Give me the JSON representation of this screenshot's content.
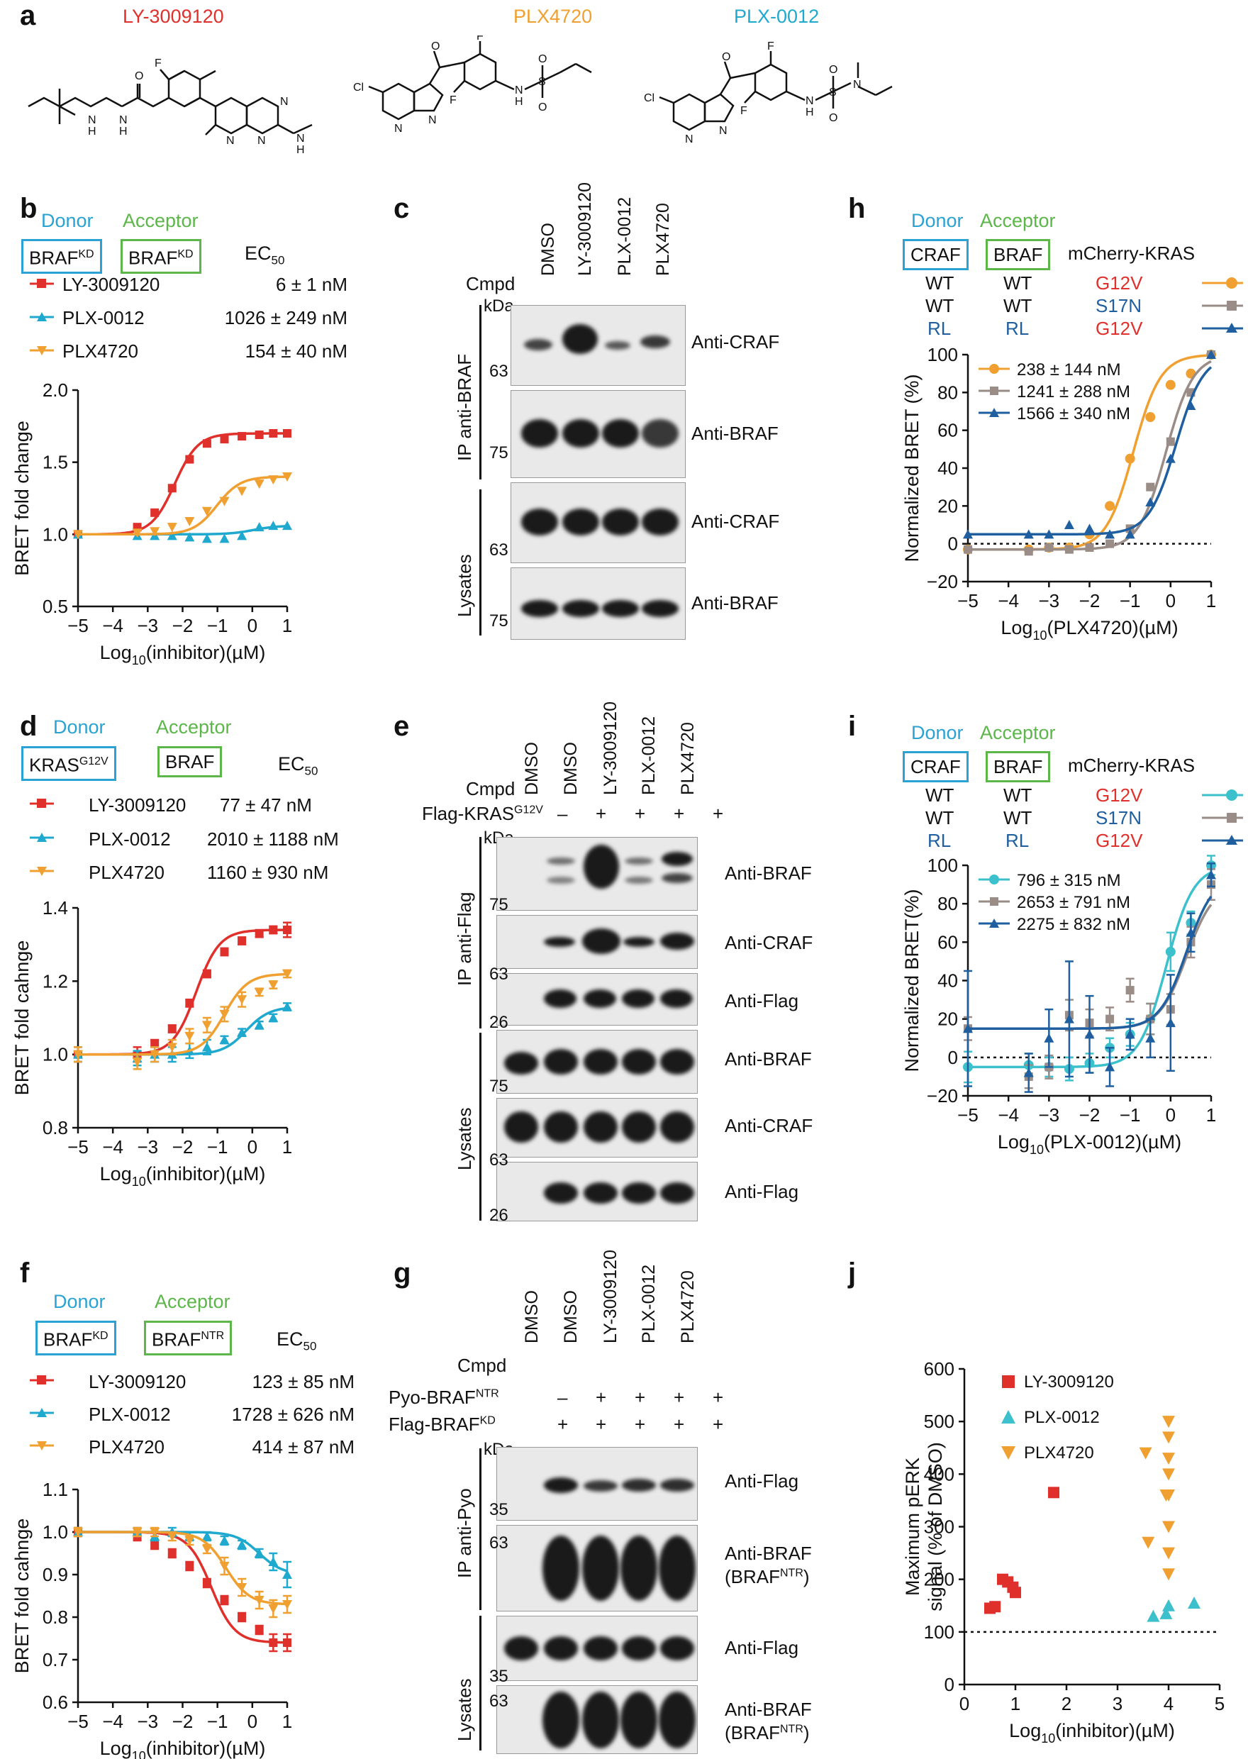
{
  "panels": {
    "a": "a",
    "b": "b",
    "c": "c",
    "d": "d",
    "e": "e",
    "f": "f",
    "g": "g",
    "h": "h",
    "i": "i",
    "j": "j"
  },
  "panel_a": {
    "compounds": [
      {
        "name": "LY-3009120",
        "color": "#e0302c"
      },
      {
        "name": "PLX4720",
        "color": "#f0a030"
      },
      {
        "name": "PLX-0012",
        "color": "#20a9cf"
      }
    ],
    "atoms": {
      "F": "F",
      "H": "H",
      "N": "N",
      "O": "O",
      "S": "S",
      "Cl": "Cl"
    }
  },
  "legend_common": {
    "donor": "Donor",
    "acceptor": "Acceptor",
    "ec50": "EC",
    "ec50_sub": "50"
  },
  "panel_b": {
    "donor_box": "BRAF",
    "donor_sup": "KD",
    "acceptor_box": "BRAF",
    "acceptor_sup": "KD",
    "legend": [
      {
        "name": "LY-3009120",
        "ec50": "6 ± 1 nM"
      },
      {
        "name": "PLX-0012",
        "ec50": "1026 ± 249 nM"
      },
      {
        "name": "PLX4720",
        "ec50": "154 ± 40 nM"
      }
    ]
  },
  "panel_d": {
    "donor_box": "KRAS",
    "donor_sup": "G12V",
    "acceptor_box": "BRAF",
    "legend": [
      {
        "name": "LY-3009120",
        "ec50": "77 ± 47 nM"
      },
      {
        "name": "PLX-0012",
        "ec50": "2010 ± 1188 nM"
      },
      {
        "name": "PLX4720",
        "ec50": "1160 ± 930 nM"
      }
    ]
  },
  "panel_f": {
    "donor_box": "BRAF",
    "donor_sup": "KD",
    "acceptor_box": "BRAF",
    "acceptor_sup": "NTR",
    "legend": [
      {
        "name": "LY-3009120",
        "ec50": "123 ± 85 nM"
      },
      {
        "name": "PLX-0012",
        "ec50": "1728 ± 626 nM"
      },
      {
        "name": "PLX4720",
        "ec50": "414 ± 87 nM"
      }
    ]
  },
  "panel_h": {
    "donor_box": "CRAF",
    "acceptor_box": "BRAF",
    "kras": "mCherry-KRAS",
    "rows": [
      [
        "WT",
        "WT",
        "G12V"
      ],
      [
        "WT",
        "WT",
        "S17N"
      ],
      [
        "RL",
        "RL",
        "G12V"
      ]
    ],
    "ec50": [
      "238 ± 144 nM",
      "1241 ± 288 nM",
      "1566 ± 340 nM"
    ]
  },
  "panel_i": {
    "donor_box": "CRAF",
    "acceptor_box": "BRAF",
    "kras": "mCherry-KRAS",
    "rows": [
      [
        "WT",
        "WT",
        "G12V"
      ],
      [
        "WT",
        "WT",
        "S17N"
      ],
      [
        "RL",
        "RL",
        "G12V"
      ]
    ],
    "ec50": [
      "796 ± 315 nM",
      "2653 ± 791 nM",
      "2275 ± 832 nM"
    ]
  },
  "panel_c": {
    "cmpd": "Cmpd",
    "kda": "kDa",
    "lanes": [
      "DMSO",
      "LY-3009120",
      "PLX-0012",
      "PLX4720"
    ],
    "groups": [
      "IP anti-BRAF",
      "Lysates"
    ],
    "blots": [
      "Anti-CRAF",
      "Anti-BRAF",
      "Anti-CRAF",
      "Anti-BRAF"
    ],
    "markers": [
      "63",
      "75",
      "63",
      "75"
    ]
  },
  "panel_e": {
    "cmpd": "Cmpd",
    "kda": "kDa",
    "flag_label": "Flag-KRAS",
    "flag_sup": "G12V",
    "lanes": [
      "DMSO",
      "DMSO",
      "LY-3009120",
      "PLX-0012",
      "PLX4720"
    ],
    "flag_signs": [
      "–",
      "+",
      "+",
      "+",
      "+"
    ],
    "groups": [
      "IP anti-Flag",
      "Lysates"
    ],
    "blots": [
      "Anti-BRAF",
      "Anti-CRAF",
      "Anti-Flag",
      "Anti-BRAF",
      "Anti-CRAF",
      "Anti-Flag"
    ],
    "markers": [
      "75",
      "63",
      "26",
      "75",
      "63",
      "26"
    ]
  },
  "panel_g": {
    "cmpd": "Cmpd",
    "kda": "kDa",
    "pyo_label": "Pyo-BRAF",
    "pyo_sup": "NTR",
    "flag_label": "Flag-BRAF",
    "flag_sup": "KD",
    "lanes": [
      "DMSO",
      "DMSO",
      "LY-3009120",
      "PLX-0012",
      "PLX4720"
    ],
    "pyo_signs": [
      "–",
      "+",
      "+",
      "+",
      "+"
    ],
    "flag_signs": [
      "+",
      "+",
      "+",
      "+",
      "+"
    ],
    "groups": [
      "IP anti-Pyo",
      "Lysates"
    ],
    "blots": [
      "Anti-Flag",
      "Anti-BRAF",
      "Anti-Flag",
      "Anti-BRAF"
    ],
    "blot_sub": "(BRAF",
    "blot_sub_sup": "NTR",
    "blot_sub_end": ")",
    "markers": [
      "35",
      "63",
      "35",
      "63"
    ]
  },
  "chart_data": [
    {
      "id": "b",
      "type": "line",
      "ylabel": "BRET fold change",
      "xlabel": "Log10(inhibitor)(µM)",
      "xlim": [
        -5,
        1
      ],
      "ylim": [
        0.5,
        2.0
      ],
      "xticks": [
        -5,
        -4,
        -3,
        -2,
        -1,
        0,
        1
      ],
      "yticks": [
        0.5,
        1.0,
        1.5,
        2.0
      ],
      "series": [
        {
          "name": "LY-3009120",
          "color": "#e0302c",
          "marker": "square",
          "x": [
            -5,
            -3.3,
            -2.8,
            -2.3,
            -1.8,
            -1.3,
            -0.8,
            -0.3,
            0.2,
            0.6,
            1
          ],
          "y": [
            1.0,
            1.05,
            1.15,
            1.32,
            1.52,
            1.63,
            1.66,
            1.68,
            1.69,
            1.7,
            1.7
          ]
        },
        {
          "name": "PLX-0012",
          "color": "#20a9cf",
          "marker": "triangle",
          "x": [
            -5,
            -3.3,
            -2.8,
            -2.3,
            -1.8,
            -1.3,
            -0.8,
            -0.3,
            0.2,
            0.6,
            1
          ],
          "y": [
            1.0,
            0.99,
            0.99,
            0.99,
            0.98,
            0.97,
            0.97,
            0.99,
            1.05,
            1.06,
            1.06
          ]
        },
        {
          "name": "PLX4720",
          "color": "#f0a030",
          "marker": "triangle-down",
          "x": [
            -5,
            -3.3,
            -2.8,
            -2.3,
            -1.8,
            -1.3,
            -0.8,
            -0.3,
            0.2,
            0.6,
            1
          ],
          "y": [
            1.0,
            1.01,
            1.02,
            1.05,
            1.09,
            1.16,
            1.23,
            1.3,
            1.35,
            1.38,
            1.4
          ]
        }
      ]
    },
    {
      "id": "d",
      "type": "line",
      "ylabel": "BRET fold cahnge",
      "xlabel": "Log10(inhibitor)(µM)",
      "xlim": [
        -5,
        1
      ],
      "ylim": [
        0.8,
        1.4
      ],
      "xticks": [
        -5,
        -4,
        -3,
        -2,
        -1,
        0,
        1
      ],
      "yticks": [
        0.8,
        1.0,
        1.2,
        1.4
      ],
      "series": [
        {
          "name": "LY-3009120",
          "color": "#e0302c",
          "marker": "square",
          "x": [
            -5,
            -3.3,
            -2.8,
            -2.3,
            -1.8,
            -1.3,
            -0.8,
            -0.3,
            0.2,
            0.6,
            1
          ],
          "y": [
            1.0,
            1.0,
            1.03,
            1.07,
            1.14,
            1.22,
            1.28,
            1.31,
            1.33,
            1.34,
            1.34
          ],
          "err": [
            0.02,
            0.02,
            0.01,
            0.01,
            0.01,
            0.01,
            0.01,
            0.01,
            0.01,
            0.01,
            0.02
          ]
        },
        {
          "name": "PLX-0012",
          "color": "#20a9cf",
          "marker": "triangle",
          "x": [
            -5,
            -3.3,
            -2.8,
            -2.3,
            -1.8,
            -1.3,
            -0.8,
            -0.3,
            0.2,
            0.6,
            1
          ],
          "y": [
            1.0,
            0.99,
            1.0,
            1.0,
            1.01,
            1.02,
            1.04,
            1.06,
            1.08,
            1.1,
            1.13
          ],
          "err": [
            0.02,
            0.02,
            0.02,
            0.02,
            0.02,
            0.02,
            0.01,
            0.01,
            0.01,
            0.01,
            0.01
          ]
        },
        {
          "name": "PLX4720",
          "color": "#f0a030",
          "marker": "triangle-down",
          "x": [
            -5,
            -3.3,
            -2.8,
            -2.3,
            -1.8,
            -1.3,
            -0.8,
            -0.3,
            0.2,
            0.6,
            1
          ],
          "y": [
            1.0,
            0.98,
            1.0,
            1.02,
            1.05,
            1.08,
            1.11,
            1.15,
            1.17,
            1.19,
            1.22
          ],
          "err": [
            0.02,
            0.02,
            0.02,
            0.02,
            0.02,
            0.02,
            0.02,
            0.02,
            0.01,
            0.01,
            0.01
          ]
        }
      ]
    },
    {
      "id": "f",
      "type": "line",
      "ylabel": "BRET fold cahnge",
      "xlabel": "Log10(inhibitor)(µM)",
      "xlim": [
        -5,
        1
      ],
      "ylim": [
        0.6,
        1.1
      ],
      "xticks": [
        -5,
        -4,
        -3,
        -2,
        -1,
        0,
        1
      ],
      "yticks": [
        0.6,
        0.7,
        0.8,
        0.9,
        1.0,
        1.1
      ],
      "series": [
        {
          "name": "LY-3009120",
          "color": "#e0302c",
          "marker": "square",
          "x": [
            -5,
            -3.3,
            -2.8,
            -2.3,
            -1.8,
            -1.3,
            -0.8,
            -0.3,
            0.2,
            0.6,
            1
          ],
          "y": [
            1.0,
            0.99,
            0.97,
            0.95,
            0.92,
            0.88,
            0.84,
            0.8,
            0.77,
            0.74,
            0.74
          ],
          "err": [
            0.01,
            0.01,
            0.01,
            0.01,
            0.01,
            0.01,
            0.01,
            0.01,
            0.01,
            0.02,
            0.02
          ]
        },
        {
          "name": "PLX-0012",
          "color": "#20a9cf",
          "marker": "triangle",
          "x": [
            -5,
            -3.3,
            -2.8,
            -2.3,
            -1.8,
            -1.3,
            -0.8,
            -0.3,
            0.2,
            0.6,
            1
          ],
          "y": [
            1.0,
            1.0,
            0.99,
            1.0,
            0.99,
            0.99,
            0.98,
            0.97,
            0.95,
            0.93,
            0.9
          ],
          "err": [
            0.01,
            0.01,
            0.01,
            0.01,
            0.01,
            0.01,
            0.01,
            0.01,
            0.01,
            0.02,
            0.03
          ]
        },
        {
          "name": "PLX4720",
          "color": "#f0a030",
          "marker": "triangle-down",
          "x": [
            -5,
            -3.3,
            -2.8,
            -2.3,
            -1.8,
            -1.3,
            -0.8,
            -0.3,
            0.2,
            0.6,
            1
          ],
          "y": [
            1.0,
            1.0,
            1.0,
            0.99,
            0.98,
            0.96,
            0.92,
            0.87,
            0.84,
            0.82,
            0.83
          ],
          "err": [
            0.01,
            0.01,
            0.01,
            0.01,
            0.01,
            0.01,
            0.02,
            0.02,
            0.02,
            0.02,
            0.02
          ]
        }
      ]
    },
    {
      "id": "h",
      "type": "line",
      "ylabel": "Normalized BRET (%)",
      "xlabel": "Log10(PLX4720)(µM)",
      "xlim": [
        -5,
        1
      ],
      "ylim": [
        -20,
        100
      ],
      "xticks": [
        -5,
        -4,
        -3,
        -2,
        -1,
        0,
        1
      ],
      "yticks": [
        -20,
        0,
        20,
        40,
        60,
        80,
        100
      ],
      "dashed_zero": true,
      "series": [
        {
          "name": "WT/WT/G12V",
          "color": "#f0a030",
          "marker": "circle",
          "x": [
            -5,
            -3.5,
            -3,
            -2.5,
            -2,
            -1.5,
            -1,
            -0.5,
            0,
            0.5,
            1
          ],
          "y": [
            -3,
            -3,
            -2,
            -2,
            5,
            20,
            45,
            67,
            84,
            90,
            100
          ]
        },
        {
          "name": "WT/WT/S17N",
          "color": "#9a8c86",
          "marker": "square",
          "x": [
            -5,
            -3.5,
            -3,
            -2.5,
            -2,
            -1.5,
            -1,
            -0.5,
            0,
            0.5,
            1
          ],
          "y": [
            -3,
            -4,
            -2,
            -3,
            -2,
            0,
            8,
            30,
            54,
            80,
            100
          ]
        },
        {
          "name": "RL/RL/G12V",
          "color": "#1f5fa0",
          "marker": "triangle",
          "x": [
            -5,
            -3.5,
            -3,
            -2.5,
            -2,
            -1.5,
            -1,
            -0.5,
            0,
            0.5,
            1
          ],
          "y": [
            5,
            5,
            5,
            10,
            8,
            5,
            5,
            22,
            45,
            73,
            100
          ]
        }
      ]
    },
    {
      "id": "i",
      "type": "line",
      "ylabel": "Normalized BRET(%)",
      "xlabel": "Log10(PLX-0012)(µM)",
      "xlim": [
        -5,
        1
      ],
      "ylim": [
        -20,
        100
      ],
      "xticks": [
        -5,
        -4,
        -3,
        -2,
        -1,
        0,
        1
      ],
      "yticks": [
        -20,
        0,
        20,
        40,
        60,
        80,
        100
      ],
      "dashed_zero": true,
      "series": [
        {
          "name": "WT/WT/G12V",
          "color": "#3cc1cc",
          "marker": "circle",
          "x": [
            -5,
            -3.5,
            -3,
            -2.5,
            -2,
            -1.5,
            -1,
            -0.5,
            0,
            0.5,
            1
          ],
          "y": [
            -5,
            -4,
            -5,
            -6,
            -3,
            5,
            12,
            20,
            55,
            70,
            100
          ],
          "err": [
            8,
            6,
            5,
            6,
            5,
            5,
            6,
            8,
            10,
            6,
            5
          ]
        },
        {
          "name": "WT/WT/S17N",
          "color": "#9a8c86",
          "marker": "square",
          "x": [
            -5,
            -3.5,
            -3,
            -2.5,
            -2,
            -1.5,
            -1,
            -0.5,
            0,
            0.5,
            1
          ],
          "y": [
            15,
            -10,
            -5,
            22,
            18,
            20,
            35,
            20,
            25,
            60,
            90
          ],
          "err": [
            6,
            6,
            6,
            8,
            7,
            6,
            6,
            8,
            8,
            8,
            8
          ]
        },
        {
          "name": "RL/RL/G12V",
          "color": "#1f5fa0",
          "marker": "triangle",
          "x": [
            -5,
            -3.5,
            -3,
            -2.5,
            -2,
            -1.5,
            -1,
            -0.5,
            0,
            0.5,
            1
          ],
          "y": [
            15,
            -8,
            10,
            20,
            12,
            -5,
            12,
            10,
            18,
            65,
            95
          ],
          "err": [
            30,
            10,
            15,
            30,
            20,
            10,
            8,
            10,
            25,
            10,
            6
          ]
        }
      ]
    },
    {
      "id": "j",
      "type": "scatter",
      "ylabel": "Maximum pERK signal (% of DMSO)",
      "xlabel": "Log10(inhibitor)(µM)",
      "xlim": [
        0,
        5
      ],
      "ylim": [
        0,
        600
      ],
      "xticks": [
        0,
        1,
        2,
        3,
        4,
        5
      ],
      "yticks": [
        0,
        100,
        200,
        300,
        400,
        500,
        600
      ],
      "dashed_y": 100,
      "series": [
        {
          "name": "LY-3009120",
          "color": "#e0302c",
          "marker": "square",
          "x": [
            0.5,
            0.6,
            0.75,
            0.85,
            0.95,
            1.0,
            1.75
          ],
          "y": [
            145,
            148,
            200,
            195,
            185,
            175,
            365
          ]
        },
        {
          "name": "PLX-0012",
          "color": "#3cc1cc",
          "marker": "triangle",
          "x": [
            3.7,
            3.95,
            4.0,
            4.5
          ],
          "y": [
            130,
            135,
            150,
            155
          ]
        },
        {
          "name": "PLX4720",
          "color": "#f0a030",
          "marker": "triangle-down",
          "x": [
            3.55,
            3.6,
            3.95,
            4.0,
            4.0,
            4.0,
            4.0,
            4.0,
            4.0,
            4.0,
            4.0
          ],
          "y": [
            440,
            270,
            360,
            500,
            470,
            430,
            400,
            360,
            300,
            250,
            210
          ]
        }
      ]
    }
  ]
}
